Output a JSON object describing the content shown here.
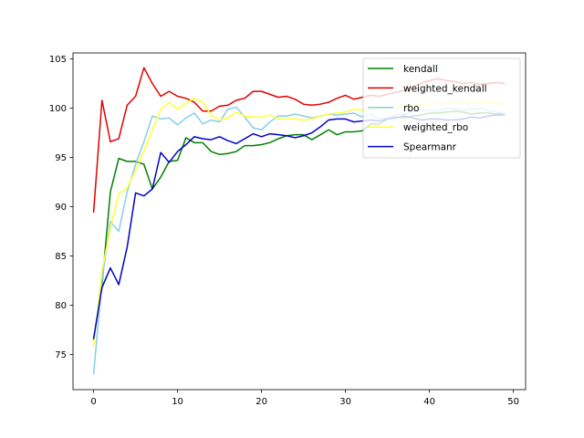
{
  "chart_data": {
    "type": "line",
    "title": "",
    "xlabel": "",
    "ylabel": "",
    "xlim": [
      -2.45,
      51.45
    ],
    "ylim": [
      71.45,
      105.6
    ],
    "xticks": [
      0,
      10,
      20,
      30,
      40,
      50
    ],
    "yticks": [
      75,
      80,
      85,
      90,
      95,
      100,
      105
    ],
    "grid": false,
    "legend_position": "upper right",
    "series": [
      {
        "name": "kendall",
        "color": "#008000",
        "x": [
          0,
          1,
          2,
          3,
          4,
          5,
          6,
          7,
          8,
          9,
          10,
          11,
          12,
          13,
          14,
          15,
          16,
          17,
          18,
          19,
          20,
          21,
          22,
          23,
          24,
          25,
          26,
          27,
          28,
          29,
          30,
          31,
          32,
          33,
          34,
          35,
          36,
          37,
          38,
          39,
          40,
          41,
          42,
          43,
          44,
          45,
          46,
          47,
          48,
          49
        ],
        "values": [
          76.5,
          82.0,
          91.5,
          94.9,
          94.6,
          94.6,
          94.3,
          91.8,
          93.0,
          94.6,
          94.7,
          97.0,
          96.5,
          96.5,
          95.6,
          95.3,
          95.4,
          95.6,
          96.2,
          96.2,
          96.3,
          96.5,
          96.9,
          97.2,
          97.3,
          97.3,
          96.8,
          97.3,
          97.8,
          97.3,
          97.6,
          97.6,
          97.7,
          98.4,
          98.4,
          98.9,
          99.1,
          99.0,
          99.2,
          99.3,
          99.5,
          99.5,
          99.6,
          99.7,
          99.6,
          99.4,
          99.5,
          99.5,
          99.4,
          99.5
        ]
      },
      {
        "name": "weighted_kendall",
        "color": "#e00000",
        "x": [
          0,
          1,
          2,
          3,
          4,
          5,
          6,
          7,
          8,
          9,
          10,
          11,
          12,
          13,
          14,
          15,
          16,
          17,
          18,
          19,
          20,
          21,
          22,
          23,
          24,
          25,
          26,
          27,
          28,
          29,
          30,
          31,
          32,
          33,
          34,
          35,
          36,
          37,
          38,
          39,
          40,
          41,
          42,
          43,
          44,
          45,
          46,
          47,
          48,
          49
        ],
        "values": [
          89.4,
          100.8,
          96.6,
          96.9,
          100.3,
          101.2,
          104.1,
          102.5,
          101.2,
          101.7,
          101.2,
          101.0,
          100.6,
          99.7,
          99.7,
          100.2,
          100.3,
          100.8,
          101.0,
          101.7,
          101.7,
          101.4,
          101.1,
          101.2,
          100.9,
          100.4,
          100.3,
          100.4,
          100.6,
          101.0,
          101.3,
          100.9,
          101.1,
          101.3,
          101.2,
          101.4,
          101.6,
          101.8,
          102.2,
          102.5,
          102.8,
          103.0,
          102.8,
          102.7,
          102.5,
          102.6,
          102.4,
          102.5,
          102.6,
          102.5
        ]
      },
      {
        "name": "rbo",
        "color": "#87ceeb",
        "x": [
          0,
          1,
          2,
          3,
          4,
          5,
          6,
          7,
          8,
          9,
          10,
          11,
          12,
          13,
          14,
          15,
          16,
          17,
          18,
          19,
          20,
          21,
          22,
          23,
          24,
          25,
          26,
          27,
          28,
          29,
          30,
          31,
          32,
          33,
          34,
          35,
          36,
          37,
          38,
          39,
          40,
          41,
          42,
          43,
          44,
          45,
          46,
          47,
          48,
          49
        ],
        "values": [
          73.0,
          82.5,
          88.5,
          87.5,
          91.5,
          94.3,
          96.6,
          99.2,
          98.9,
          99.0,
          98.3,
          99.0,
          99.5,
          98.4,
          98.8,
          98.6,
          99.9,
          100.1,
          99.1,
          98.0,
          97.8,
          98.6,
          99.2,
          99.2,
          99.4,
          99.2,
          99.0,
          99.2,
          99.4,
          99.3,
          99.4,
          99.5,
          99.1,
          99.4,
          98.9,
          99.0,
          99.3,
          99.4,
          99.6,
          99.8,
          99.8,
          99.7,
          100.0,
          99.9,
          99.8,
          99.9,
          100.0,
          99.8,
          99.6,
          99.5
        ]
      },
      {
        "name": "weighted_rbo",
        "color": "#ffff33",
        "x": [
          0,
          1,
          2,
          3,
          4,
          5,
          6,
          7,
          8,
          9,
          10,
          11,
          12,
          13,
          14,
          15,
          16,
          17,
          18,
          19,
          20,
          21,
          22,
          23,
          24,
          25,
          26,
          27,
          28,
          29,
          30,
          31,
          32,
          33,
          34,
          35,
          36,
          37,
          38,
          39,
          40,
          41,
          42,
          43,
          44,
          45,
          46,
          47,
          48,
          49
        ],
        "values": [
          75.8,
          83.5,
          87.8,
          91.3,
          91.9,
          93.7,
          95.6,
          97.8,
          99.9,
          100.6,
          99.9,
          100.5,
          101.0,
          100.6,
          99.3,
          98.8,
          99.0,
          99.6,
          99.2,
          99.1,
          99.1,
          99.3,
          98.9,
          98.9,
          98.9,
          98.8,
          98.9,
          99.2,
          99.4,
          99.5,
          99.6,
          99.9,
          99.8,
          99.9,
          100.0,
          100.0,
          100.2,
          100.2,
          100.3,
          100.4,
          100.4,
          100.5,
          100.5,
          100.6,
          100.6,
          100.5,
          100.6,
          100.6,
          100.5,
          100.6
        ]
      },
      {
        "name": "Spearmanr",
        "color": "#0000cd",
        "x": [
          0,
          1,
          2,
          3,
          4,
          5,
          6,
          7,
          8,
          9,
          10,
          11,
          12,
          13,
          14,
          15,
          16,
          17,
          18,
          19,
          20,
          21,
          22,
          23,
          24,
          25,
          26,
          27,
          28,
          29,
          30,
          31,
          32,
          33,
          34,
          35,
          36,
          37,
          38,
          39,
          40,
          41,
          42,
          43,
          44,
          45,
          46,
          47,
          48,
          49
        ],
        "values": [
          76.6,
          81.8,
          83.8,
          82.1,
          85.9,
          91.4,
          91.1,
          91.8,
          95.5,
          94.5,
          95.6,
          96.3,
          97.1,
          96.9,
          96.8,
          97.1,
          96.7,
          96.4,
          96.9,
          97.4,
          97.1,
          97.4,
          97.3,
          97.2,
          97.0,
          97.2,
          97.5,
          98.1,
          98.8,
          98.9,
          98.9,
          98.6,
          98.7,
          98.8,
          98.7,
          98.9,
          99.0,
          99.2,
          99.0,
          98.8,
          98.9,
          98.9,
          98.8,
          98.8,
          98.9,
          99.1,
          99.0,
          99.2,
          99.3,
          99.3
        ]
      }
    ]
  }
}
